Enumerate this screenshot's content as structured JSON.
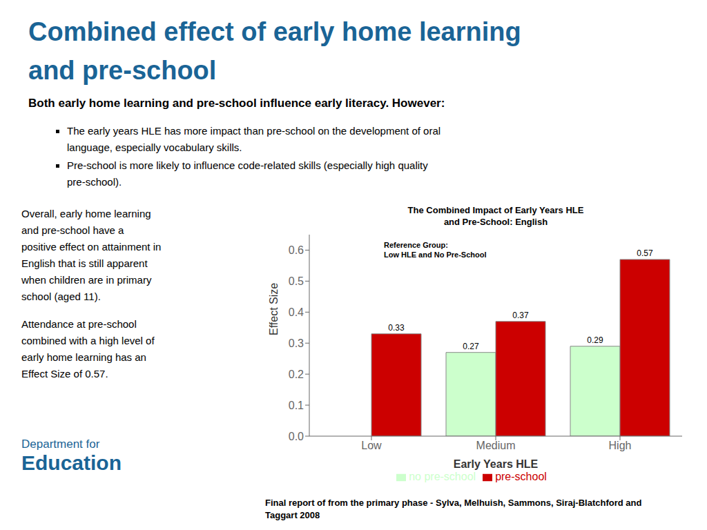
{
  "title": "Combined effect of early home learning\nand pre-school",
  "color": "#1a6496",
  "subtitle": "Both early home learning and pre-school influence early literacy. However:",
  "bullets": [
    "The early years HLE has more impact than pre-school on the development of oral\nlanguage, especially vocabulary skills.",
    "Pre-school is more likely to influence code-related skills (especially high quality\npre-school)."
  ],
  "notes": [
    "Overall, early home learning\nand pre-school have a\npositive effect on attainment in\nEnglish that is still apparent\nwhen children are in primary\nschool (aged 11).",
    "Attendance at pre-school\ncombined with a high level of\nearly home learning has an\nEffect Size of 0.57."
  ],
  "department": "Department for\nEducation",
  "footer": "Final report of from the primary phase - Sylva, Melhuish, Sammons, Siraj-Blatchford and\nTaggart 2008",
  "chart_data": {
    "type": "bar",
    "title": "The Combined Impact of Early Years HLE\nand Pre-School: English",
    "categories": [
      "Low",
      "Medium",
      "High"
    ],
    "series": [
      {
        "name": "no pre-school",
        "color": "#ccffcc",
        "values": [
          0,
          0.27,
          0.29
        ]
      },
      {
        "name": "pre-school",
        "color": "#cc0000",
        "values": [
          0.33,
          0.37,
          0.57
        ]
      }
    ],
    "xlabel": "Early Years HLE",
    "ylabel": "Effect Size",
    "ylim": [
      0,
      0.65
    ],
    "yticks": [
      {
        "value": 0,
        "label": "0.0"
      },
      0.1,
      0.2,
      0.3,
      0.4,
      0.5,
      0.6
    ],
    "data_labels": true,
    "legend": "bottom",
    "grid": false,
    "annotations": [
      "Reference Group:\nLow HLE and No Pre-School"
    ]
  }
}
